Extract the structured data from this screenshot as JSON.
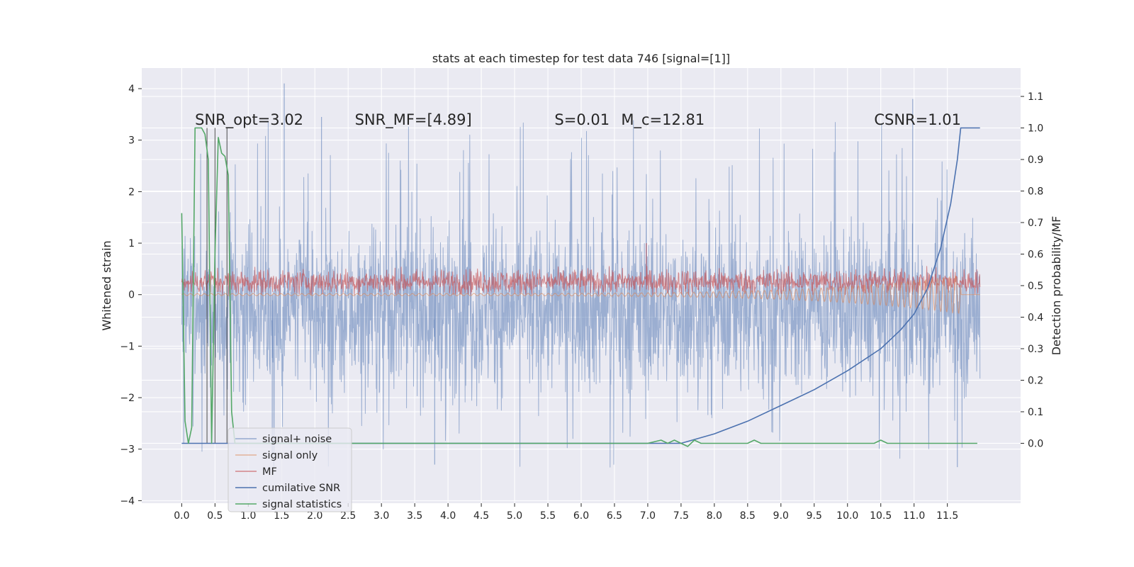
{
  "chart_data": {
    "type": "line",
    "title": "stats at each timestep for test data 746 [signal=[1]]",
    "xlabel": "",
    "ylabel": "Whitened strain",
    "ylabel_right": "Detection probability/MF",
    "xlim": [
      -0.6,
      12.6
    ],
    "ylim": [
      -4.05,
      4.4
    ],
    "ylim_right": [
      -0.19,
      1.19
    ],
    "x_ticks": [
      0.0,
      0.5,
      1.0,
      1.5,
      2.0,
      2.5,
      3.0,
      3.5,
      4.0,
      4.5,
      5.0,
      5.5,
      6.0,
      6.5,
      7.0,
      7.5,
      8.0,
      8.5,
      9.0,
      9.5,
      10.0,
      10.5,
      11.0,
      11.5
    ],
    "x_tick_labels": [
      "0.0",
      "0.5",
      "1.0",
      "1.5",
      "2.0",
      "2.5",
      "3.0",
      "3.5",
      "4.0",
      "4.5",
      "5.0",
      "5.5",
      "6.0",
      "6.5",
      "7.0",
      "7.5",
      "8.0",
      "8.5",
      "9.0",
      "9.5",
      "10.0",
      "10.5",
      "11.0",
      "11.5"
    ],
    "y_ticks": [
      -4,
      -3,
      -2,
      -1,
      0,
      1,
      2,
      3,
      4
    ],
    "y_tick_labels": [
      "−4",
      "−3",
      "−2",
      "−1",
      "0",
      "1",
      "2",
      "3",
      "4"
    ],
    "y_right_ticks": [
      0.0,
      0.1,
      0.2,
      0.3,
      0.4,
      0.5,
      0.6,
      0.7,
      0.8,
      0.9,
      1.0,
      1.1
    ],
    "y_right_tick_labels": [
      "0.0",
      "0.1",
      "0.2",
      "0.3",
      "0.4",
      "0.5",
      "0.6",
      "0.7",
      "0.8",
      "0.9",
      "1.0",
      "1.1"
    ],
    "grid": true,
    "legend_position": "lower-left",
    "annotations": [
      {
        "text": "SNR_opt=3.02",
        "x": 0.2,
        "y": 3.3
      },
      {
        "text": "SNR_MF=[4.89]",
        "x": 2.6,
        "y": 3.3
      },
      {
        "text": "S=0.01",
        "x": 5.6,
        "y": 3.3
      },
      {
        "text": "M_c=12.81",
        "x": 6.6,
        "y": 3.3
      },
      {
        "text": "CSNR=1.01",
        "x": 10.4,
        "y": 3.3
      }
    ],
    "series": [
      {
        "name": "signal+ noise",
        "axis": "left",
        "color": "#4c72b0",
        "style": "noise",
        "x_range": [
          0.0,
          11.99
        ],
        "envelope_upper": 2.0,
        "envelope_lower": -2.6,
        "peak_max": 4.1,
        "peak_min": -3.35
      },
      {
        "name": "signal only",
        "axis": "left",
        "color": "#dd8452",
        "style": "chirp",
        "x_range": [
          0.0,
          11.99
        ],
        "amplitude_start": 0.02,
        "amplitude_end": 0.38,
        "merger_time": 11.7
      },
      {
        "name": "MF",
        "axis": "left",
        "color": "#c44e52",
        "style": "band",
        "x_range": [
          0.0,
          11.99
        ],
        "band_lower": 0.0,
        "band_upper": 0.55,
        "peak_max": 1.0
      },
      {
        "name": "cumilative SNR",
        "axis": "right",
        "color": "#4c72b0",
        "x": [
          0.0,
          7.5,
          8.0,
          8.5,
          9.0,
          9.5,
          10.0,
          10.5,
          10.8,
          11.0,
          11.2,
          11.4,
          11.55,
          11.65,
          11.7,
          11.99
        ],
        "y": [
          0.0,
          0.0,
          0.03,
          0.07,
          0.12,
          0.17,
          0.23,
          0.3,
          0.36,
          0.41,
          0.49,
          0.62,
          0.76,
          0.9,
          1.0,
          1.0
        ]
      },
      {
        "name": "signal statistics",
        "axis": "right",
        "color": "#55a868",
        "x": [
          0.0,
          0.05,
          0.1,
          0.15,
          0.2,
          0.25,
          0.3,
          0.35,
          0.4,
          0.45,
          0.5,
          0.55,
          0.6,
          0.65,
          0.7,
          0.75,
          0.8,
          0.85,
          1.0,
          2.0,
          3.0,
          4.0,
          5.0,
          6.0,
          7.0,
          7.2,
          7.3,
          7.4,
          7.5,
          7.6,
          7.7,
          7.8,
          8.0,
          8.5,
          8.6,
          8.7,
          8.8,
          9.0,
          10.0,
          10.4,
          10.5,
          10.6,
          11.0,
          11.95
        ],
        "y": [
          0.73,
          0.07,
          0.0,
          0.05,
          1.0,
          1.0,
          1.0,
          0.98,
          0.9,
          0.0,
          0.6,
          0.97,
          0.92,
          0.91,
          0.85,
          0.1,
          0.0,
          0.0,
          0.0,
          0.0,
          0.0,
          0.0,
          0.0,
          0.0,
          0.0,
          0.01,
          0.0,
          0.01,
          0.0,
          -0.01,
          0.01,
          0.0,
          0.0,
          0.0,
          0.01,
          0.0,
          0.0,
          0.0,
          0.0,
          0.0,
          0.01,
          0.0,
          0.0,
          0.0
        ]
      }
    ],
    "vertical_lines": [
      0.38,
      0.5,
      0.68
    ]
  }
}
